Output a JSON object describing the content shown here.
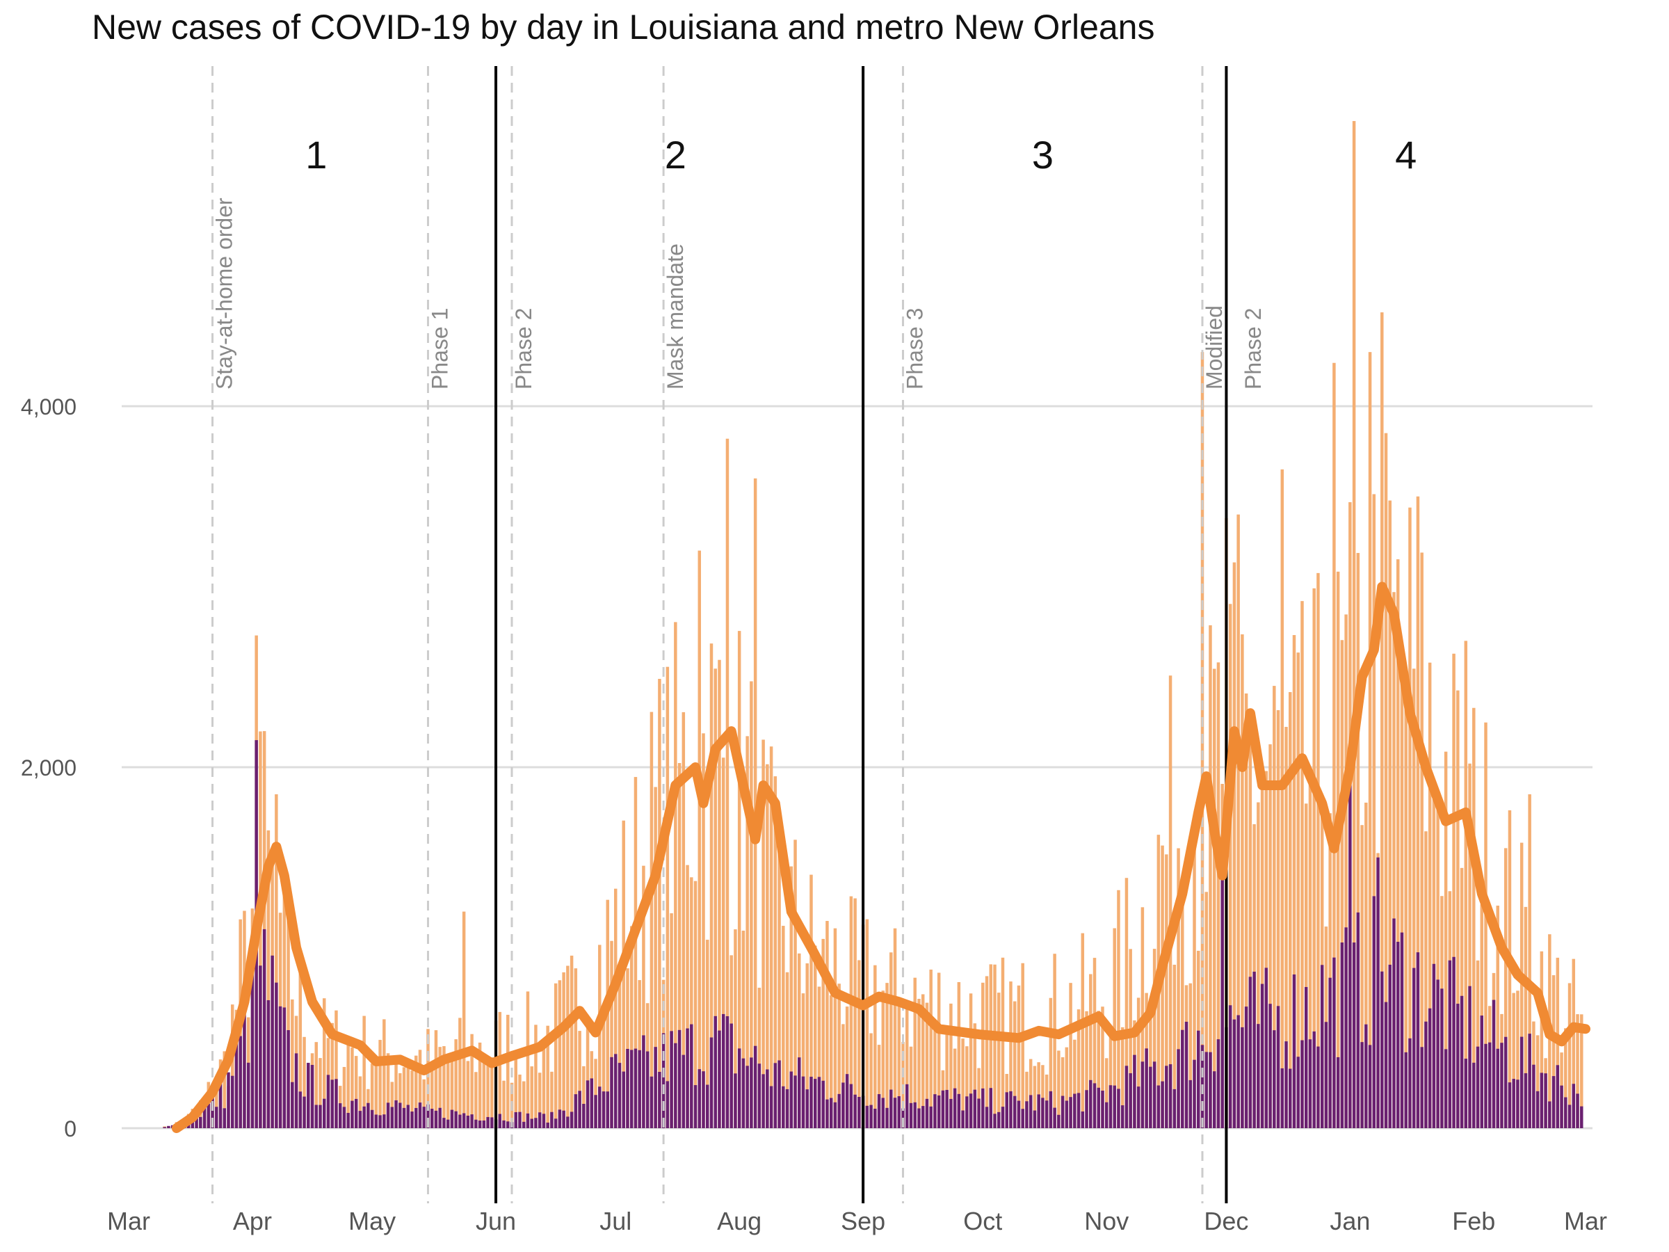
{
  "title": "New cases of COVID-19 by day in Louisiana and metro New Orleans",
  "colors": {
    "state_bars": "#f4ae72",
    "metro_bars": "#6a2070",
    "average_line": "#f08a33",
    "event_lines": "#cccccc",
    "period_lines": "#000000",
    "grid": "#dddddd"
  },
  "chart_data": {
    "type": "bar",
    "xlabel": "",
    "ylabel": "",
    "x_range": [
      "2020-03-01",
      "2021-03-01"
    ],
    "ylim": [
      -200,
      5700
    ],
    "y_ticks": [
      0,
      2000,
      4000
    ],
    "y_tick_labels": [
      "0",
      "2,000",
      "4,000"
    ],
    "x_ticks": [
      {
        "date": "2020-03-01",
        "label": "Mar"
      },
      {
        "date": "2020-04-01",
        "label": "Apr"
      },
      {
        "date": "2020-05-01",
        "label": "May"
      },
      {
        "date": "2020-06-01",
        "label": "Jun"
      },
      {
        "date": "2020-07-01",
        "label": "Jul"
      },
      {
        "date": "2020-08-01",
        "label": "Aug"
      },
      {
        "date": "2020-09-01",
        "label": "Sep"
      },
      {
        "date": "2020-10-01",
        "label": "Oct"
      },
      {
        "date": "2020-11-01",
        "label": "Nov"
      },
      {
        "date": "2020-12-01",
        "label": "Dec"
      },
      {
        "date": "2021-01-01",
        "label": "Jan"
      },
      {
        "date": "2021-02-01",
        "label": "Feb"
      },
      {
        "date": "2021-03-01",
        "label": "Mar"
      }
    ],
    "grid": true,
    "series_curves": [
      {
        "id": "state",
        "style": "bars",
        "anchors": [
          [
            "2020-03-09",
            0
          ],
          [
            "2020-03-15",
            40
          ],
          [
            "2020-03-20",
            150
          ],
          [
            "2020-03-25",
            350
          ],
          [
            "2020-03-30",
            900
          ],
          [
            "2020-04-03",
            1500
          ],
          [
            "2020-04-06",
            1300
          ],
          [
            "2020-04-10",
            900
          ],
          [
            "2020-04-15",
            550
          ],
          [
            "2020-04-20",
            470
          ],
          [
            "2020-05-01",
            420
          ],
          [
            "2020-05-15",
            380
          ],
          [
            "2020-05-25",
            420
          ],
          [
            "2020-06-01",
            450
          ],
          [
            "2020-06-15",
            520
          ],
          [
            "2020-06-25",
            800
          ],
          [
            "2020-07-05",
            1300
          ],
          [
            "2020-07-12",
            1700
          ],
          [
            "2020-07-20",
            2000
          ],
          [
            "2020-07-27",
            2100
          ],
          [
            "2020-08-03",
            1800
          ],
          [
            "2020-08-10",
            1300
          ],
          [
            "2020-08-20",
            950
          ],
          [
            "2020-09-01",
            800
          ],
          [
            "2020-09-15",
            700
          ],
          [
            "2020-10-01",
            620
          ],
          [
            "2020-10-20",
            650
          ],
          [
            "2020-11-01",
            750
          ],
          [
            "2020-11-10",
            1100
          ],
          [
            "2020-11-18",
            1700
          ],
          [
            "2020-11-25",
            1800
          ],
          [
            "2020-12-01",
            2100
          ],
          [
            "2020-12-10",
            2000
          ],
          [
            "2020-12-20",
            1900
          ],
          [
            "2020-12-30",
            2200
          ],
          [
            "2021-01-08",
            2700
          ],
          [
            "2021-01-15",
            2500
          ],
          [
            "2021-01-25",
            1900
          ],
          [
            "2021-02-05",
            1500
          ],
          [
            "2021-02-15",
            950
          ],
          [
            "2021-02-25",
            650
          ],
          [
            "2021-03-01",
            550
          ]
        ],
        "spikes": [
          [
            "2020-04-02",
            2730
          ],
          [
            "2020-04-04",
            2200
          ],
          [
            "2020-04-07",
            1850
          ],
          [
            "2020-05-24",
            1200
          ],
          [
            "2020-07-22",
            3200
          ],
          [
            "2020-07-29",
            3820
          ],
          [
            "2020-08-05",
            3600
          ],
          [
            "2020-11-25",
            4300
          ],
          [
            "2020-12-01",
            3380
          ],
          [
            "2020-12-04",
            3400
          ],
          [
            "2020-12-15",
            3650
          ],
          [
            "2020-12-28",
            4240
          ],
          [
            "2021-01-02",
            5580
          ],
          [
            "2021-01-06",
            4300
          ],
          [
            "2021-01-09",
            4520
          ],
          [
            "2021-01-18",
            3500
          ],
          [
            "2021-01-30",
            2700
          ],
          [
            "2021-02-15",
            1850
          ]
        ]
      },
      {
        "id": "metro",
        "style": "bars",
        "anchors": [
          [
            "2020-03-09",
            0
          ],
          [
            "2020-03-15",
            30
          ],
          [
            "2020-03-20",
            100
          ],
          [
            "2020-03-25",
            200
          ],
          [
            "2020-03-30",
            500
          ],
          [
            "2020-04-03",
            900
          ],
          [
            "2020-04-06",
            700
          ],
          [
            "2020-04-10",
            400
          ],
          [
            "2020-04-15",
            250
          ],
          [
            "2020-04-25",
            160
          ],
          [
            "2020-05-15",
            90
          ],
          [
            "2020-06-01",
            70
          ],
          [
            "2020-06-15",
            60
          ],
          [
            "2020-07-01",
            300
          ],
          [
            "2020-07-15",
            400
          ],
          [
            "2020-07-27",
            480
          ],
          [
            "2020-08-10",
            300
          ],
          [
            "2020-09-01",
            200
          ],
          [
            "2020-10-01",
            150
          ],
          [
            "2020-10-20",
            140
          ],
          [
            "2020-11-01",
            200
          ],
          [
            "2020-11-15",
            350
          ],
          [
            "2020-11-25",
            500
          ],
          [
            "2020-12-01",
            600
          ],
          [
            "2020-12-15",
            600
          ],
          [
            "2021-01-01",
            800
          ],
          [
            "2021-01-10",
            900
          ],
          [
            "2021-01-20",
            750
          ],
          [
            "2021-02-01",
            550
          ],
          [
            "2021-02-15",
            350
          ],
          [
            "2021-03-01",
            180
          ]
        ],
        "spikes": [
          [
            "2020-04-02",
            2150
          ],
          [
            "2020-11-30",
            1580
          ],
          [
            "2021-01-01",
            2050
          ],
          [
            "2021-01-08",
            1500
          ]
        ]
      },
      {
        "id": "state-7-day-average",
        "style": "line",
        "anchors": [
          [
            "2020-03-13",
            0
          ],
          [
            "2020-03-17",
            60
          ],
          [
            "2020-03-22",
            200
          ],
          [
            "2020-03-26",
            380
          ],
          [
            "2020-03-30",
            700
          ],
          [
            "2020-04-02",
            1100
          ],
          [
            "2020-04-05",
            1450
          ],
          [
            "2020-04-07",
            1560
          ],
          [
            "2020-04-09",
            1400
          ],
          [
            "2020-04-12",
            1000
          ],
          [
            "2020-04-16",
            700
          ],
          [
            "2020-04-21",
            520
          ],
          [
            "2020-04-28",
            460
          ],
          [
            "2020-05-02",
            370
          ],
          [
            "2020-05-08",
            380
          ],
          [
            "2020-05-14",
            320
          ],
          [
            "2020-05-19",
            380
          ],
          [
            "2020-05-26",
            430
          ],
          [
            "2020-05-31",
            360
          ],
          [
            "2020-06-05",
            400
          ],
          [
            "2020-06-12",
            450
          ],
          [
            "2020-06-18",
            560
          ],
          [
            "2020-06-22",
            650
          ],
          [
            "2020-06-26",
            530
          ],
          [
            "2020-07-01",
            800
          ],
          [
            "2020-07-06",
            1100
          ],
          [
            "2020-07-11",
            1400
          ],
          [
            "2020-07-16",
            1900
          ],
          [
            "2020-07-21",
            2000
          ],
          [
            "2020-07-23",
            1800
          ],
          [
            "2020-07-26",
            2100
          ],
          [
            "2020-07-30",
            2200
          ],
          [
            "2020-08-02",
            1900
          ],
          [
            "2020-08-05",
            1600
          ],
          [
            "2020-08-07",
            1900
          ],
          [
            "2020-08-10",
            1800
          ],
          [
            "2020-08-14",
            1200
          ],
          [
            "2020-08-19",
            1000
          ],
          [
            "2020-08-25",
            750
          ],
          [
            "2020-09-01",
            680
          ],
          [
            "2020-09-05",
            730
          ],
          [
            "2020-09-10",
            700
          ],
          [
            "2020-09-15",
            660
          ],
          [
            "2020-09-20",
            550
          ],
          [
            "2020-09-30",
            520
          ],
          [
            "2020-10-10",
            500
          ],
          [
            "2020-10-15",
            540
          ],
          [
            "2020-10-20",
            520
          ],
          [
            "2020-10-25",
            570
          ],
          [
            "2020-10-30",
            620
          ],
          [
            "2020-11-03",
            510
          ],
          [
            "2020-11-08",
            530
          ],
          [
            "2020-11-12",
            640
          ],
          [
            "2020-11-15",
            900
          ],
          [
            "2020-11-20",
            1300
          ],
          [
            "2020-11-24",
            1750
          ],
          [
            "2020-11-26",
            1950
          ],
          [
            "2020-11-28",
            1650
          ],
          [
            "2020-11-30",
            1400
          ],
          [
            "2020-12-03",
            2200
          ],
          [
            "2020-12-05",
            2000
          ],
          [
            "2020-12-07",
            2300
          ],
          [
            "2020-12-10",
            1900
          ],
          [
            "2020-12-15",
            1900
          ],
          [
            "2020-12-20",
            2050
          ],
          [
            "2020-12-25",
            1800
          ],
          [
            "2020-12-28",
            1550
          ],
          [
            "2021-01-01",
            2000
          ],
          [
            "2021-01-04",
            2500
          ],
          [
            "2021-01-07",
            2650
          ],
          [
            "2021-01-09",
            3000
          ],
          [
            "2021-01-12",
            2850
          ],
          [
            "2021-01-16",
            2300
          ],
          [
            "2021-01-20",
            2000
          ],
          [
            "2021-01-25",
            1700
          ],
          [
            "2021-01-30",
            1750
          ],
          [
            "2021-02-03",
            1300
          ],
          [
            "2021-02-08",
            1000
          ],
          [
            "2021-02-12",
            850
          ],
          [
            "2021-02-17",
            750
          ],
          [
            "2021-02-20",
            520
          ],
          [
            "2021-02-23",
            480
          ],
          [
            "2021-02-26",
            560
          ],
          [
            "2021-03-01",
            550
          ]
        ]
      }
    ],
    "events": [
      {
        "date": "2020-03-22",
        "label": "Stay-at-home order"
      },
      {
        "date": "2020-05-15",
        "label": "Phase 1"
      },
      {
        "date": "2020-06-05",
        "label": "Phase 2"
      },
      {
        "date": "2020-07-13",
        "label": "Mask mandate"
      },
      {
        "date": "2020-09-11",
        "label": "Phase 3"
      },
      {
        "date": "2020-11-25",
        "label": "Modified"
      },
      {
        "date": "2020-11-25",
        "label": "Phase 2"
      }
    ],
    "periods": [
      {
        "label": "1",
        "center": "2020-04-17"
      },
      {
        "label": "2",
        "center": "2020-07-16"
      },
      {
        "label": "3",
        "center": "2020-10-16"
      },
      {
        "label": "4",
        "center": "2021-01-15"
      }
    ],
    "period_boundaries": [
      "2020-06-01",
      "2020-09-01",
      "2020-12-01"
    ]
  }
}
